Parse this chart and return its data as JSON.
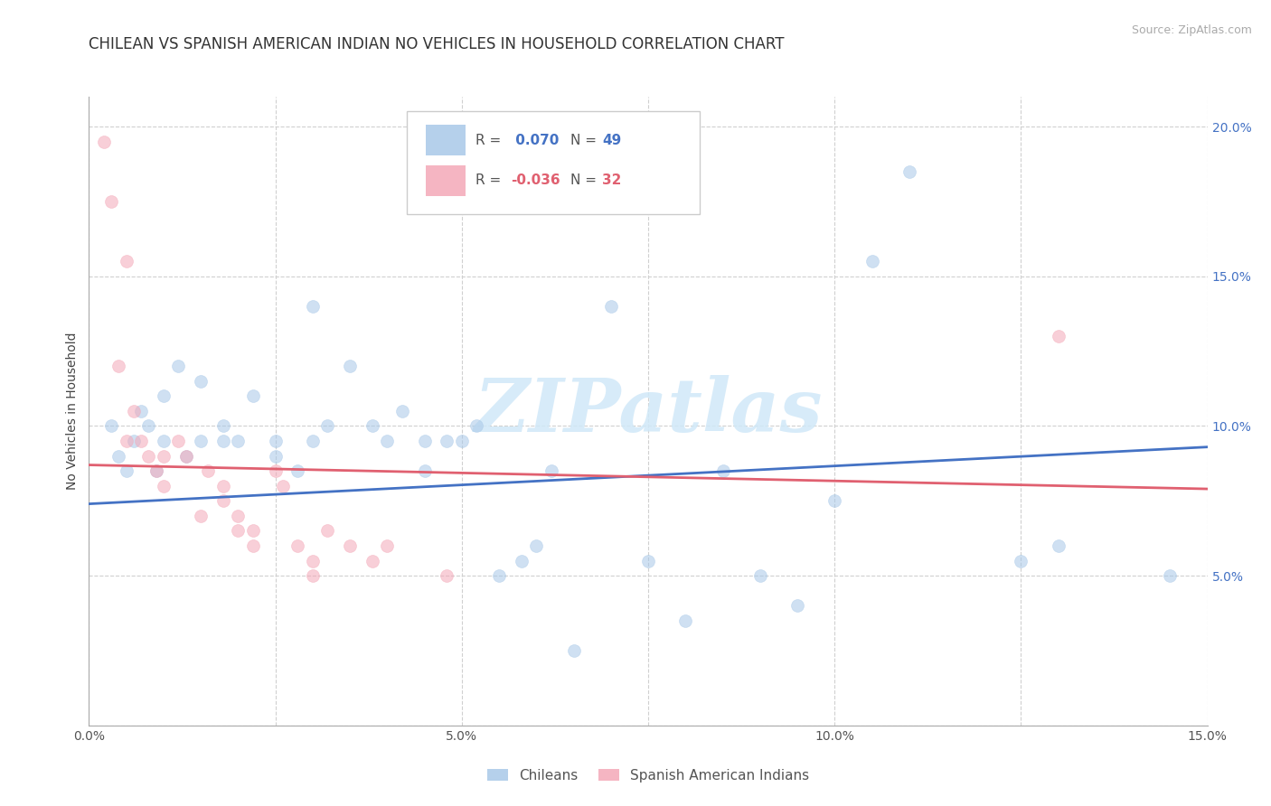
{
  "title": "CHILEAN VS SPANISH AMERICAN INDIAN NO VEHICLES IN HOUSEHOLD CORRELATION CHART",
  "source": "Source: ZipAtlas.com",
  "ylabel": "No Vehicles in Household",
  "xlim": [
    0.0,
    0.15
  ],
  "ylim": [
    0.0,
    0.21
  ],
  "x_ticks": [
    0.0,
    0.025,
    0.05,
    0.075,
    0.1,
    0.125,
    0.15
  ],
  "x_tick_labels": [
    "0.0%",
    "",
    "5.0%",
    "",
    "10.0%",
    "",
    "15.0%"
  ],
  "y_ticks": [
    0.0,
    0.05,
    0.1,
    0.15,
    0.2
  ],
  "y_tick_labels": [
    "",
    "5.0%",
    "10.0%",
    "15.0%",
    "20.0%"
  ],
  "blue_color": "#a8c8e8",
  "pink_color": "#f4a8b8",
  "blue_line_color": "#4472c4",
  "pink_line_color": "#e06070",
  "watermark_text": "ZIPatlas",
  "watermark_color": "#d0e8f8",
  "blue_scatter_x": [
    0.003,
    0.004,
    0.005,
    0.006,
    0.007,
    0.008,
    0.009,
    0.01,
    0.01,
    0.012,
    0.013,
    0.015,
    0.015,
    0.018,
    0.018,
    0.02,
    0.022,
    0.025,
    0.025,
    0.028,
    0.03,
    0.03,
    0.032,
    0.035,
    0.038,
    0.04,
    0.042,
    0.045,
    0.045,
    0.048,
    0.05,
    0.052,
    0.055,
    0.058,
    0.06,
    0.062,
    0.065,
    0.07,
    0.075,
    0.08,
    0.085,
    0.09,
    0.095,
    0.1,
    0.105,
    0.11,
    0.125,
    0.13,
    0.145
  ],
  "blue_scatter_y": [
    0.1,
    0.09,
    0.085,
    0.095,
    0.105,
    0.1,
    0.085,
    0.11,
    0.095,
    0.12,
    0.09,
    0.115,
    0.095,
    0.1,
    0.095,
    0.095,
    0.11,
    0.095,
    0.09,
    0.085,
    0.14,
    0.095,
    0.1,
    0.12,
    0.1,
    0.095,
    0.105,
    0.095,
    0.085,
    0.095,
    0.095,
    0.1,
    0.05,
    0.055,
    0.06,
    0.085,
    0.025,
    0.14,
    0.055,
    0.035,
    0.085,
    0.05,
    0.04,
    0.075,
    0.155,
    0.185,
    0.055,
    0.06,
    0.05
  ],
  "pink_scatter_x": [
    0.002,
    0.003,
    0.004,
    0.005,
    0.005,
    0.006,
    0.007,
    0.008,
    0.009,
    0.01,
    0.01,
    0.012,
    0.013,
    0.015,
    0.016,
    0.018,
    0.018,
    0.02,
    0.02,
    0.022,
    0.022,
    0.025,
    0.026,
    0.028,
    0.03,
    0.03,
    0.032,
    0.035,
    0.038,
    0.04,
    0.048,
    0.13
  ],
  "pink_scatter_y": [
    0.195,
    0.175,
    0.12,
    0.155,
    0.095,
    0.105,
    0.095,
    0.09,
    0.085,
    0.09,
    0.08,
    0.095,
    0.09,
    0.07,
    0.085,
    0.08,
    0.075,
    0.07,
    0.065,
    0.065,
    0.06,
    0.085,
    0.08,
    0.06,
    0.055,
    0.05,
    0.065,
    0.06,
    0.055,
    0.06,
    0.05,
    0.13
  ],
  "blue_line_x": [
    0.0,
    0.15
  ],
  "blue_line_y": [
    0.074,
    0.093
  ],
  "pink_line_x": [
    0.0,
    0.15
  ],
  "pink_line_y": [
    0.087,
    0.079
  ],
  "legend_label1": "Chileans",
  "legend_label2": "Spanish American Indians",
  "grid_color": "#d0d0d0",
  "background_color": "#ffffff",
  "title_fontsize": 12,
  "axis_label_fontsize": 10,
  "tick_fontsize": 10,
  "source_fontsize": 9,
  "marker_size": 100,
  "marker_alpha": 0.55
}
